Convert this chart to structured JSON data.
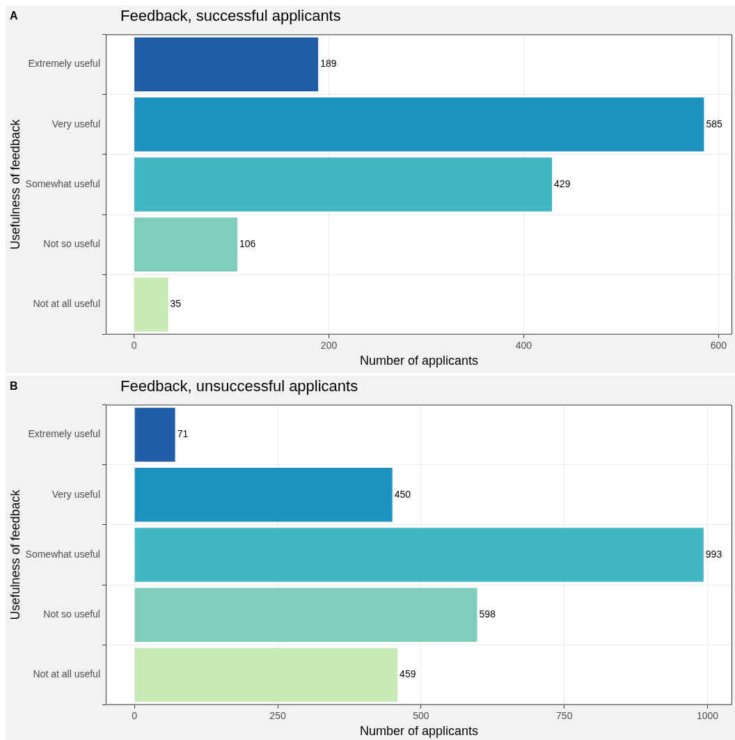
{
  "chart_data": [
    {
      "type": "bar",
      "orientation": "horizontal",
      "title": "Feedback, successful applicants",
      "xlabel": "Number of applicants",
      "ylabel": "Usefulness of feedback",
      "annotations": [
        "A"
      ],
      "categories": [
        "Extremely useful",
        "Very useful",
        "Somewhat useful",
        "Not so useful",
        "Not at all useful"
      ],
      "values": [
        189,
        585,
        429,
        106,
        35
      ],
      "colors": [
        "#225ea8",
        "#1d91c0",
        "#41b6c4",
        "#7fcdbb",
        "#c7e9b4"
      ],
      "xlim": [
        -29,
        614
      ],
      "xticks": [
        0,
        200,
        400,
        600
      ],
      "grid": true,
      "data_labels": true
    },
    {
      "type": "bar",
      "orientation": "horizontal",
      "title": "Feedback, unsuccessful applicants",
      "xlabel": "Number of applicants",
      "ylabel": "Usefulness of feedback",
      "annotations": [
        "B"
      ],
      "categories": [
        "Extremely useful",
        "Very useful",
        "Somewhat useful",
        "Not so useful",
        "Not at all useful"
      ],
      "values": [
        71,
        450,
        993,
        598,
        459
      ],
      "colors": [
        "#225ea8",
        "#1d91c0",
        "#41b6c4",
        "#7fcdbb",
        "#c7e9b4"
      ],
      "xlim": [
        -50,
        1043
      ],
      "xticks": [
        0,
        250,
        500,
        750,
        1000
      ],
      "grid": true,
      "data_labels": true
    }
  ]
}
